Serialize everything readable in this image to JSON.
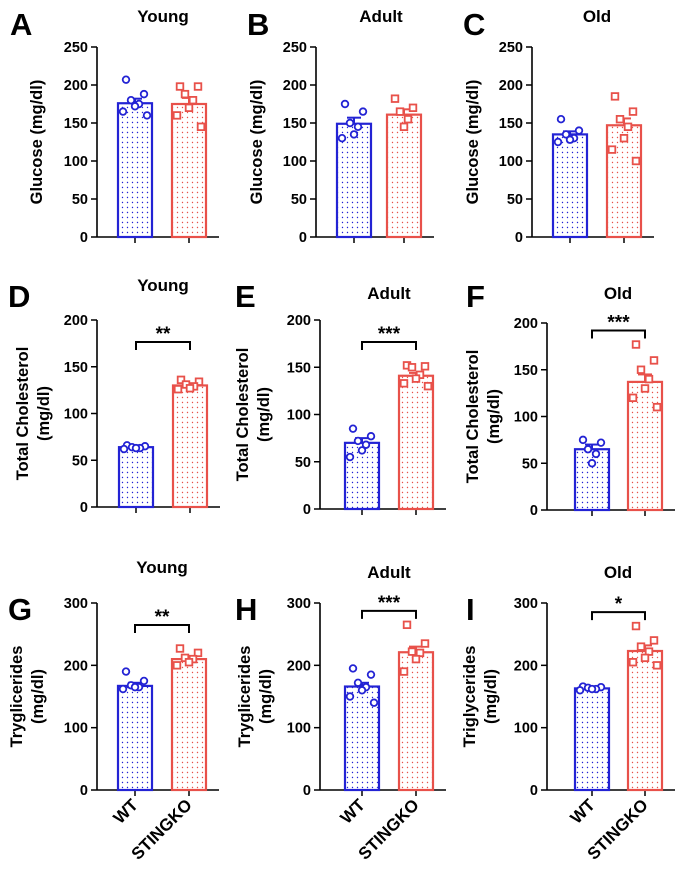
{
  "figure": {
    "categories": [
      "WT",
      "STINGKO"
    ]
  },
  "colors": {
    "wt": "#2323d4",
    "ko": "#e8514a",
    "axis": "#000000"
  },
  "chart_data": [
    {
      "type": "bar",
      "letter": "A",
      "title": "Young",
      "ylabel": [
        "Glucose (mg/dl)"
      ],
      "ylim": [
        0,
        250
      ],
      "yticks": [
        0,
        50,
        100,
        150,
        200,
        250
      ],
      "significance": "",
      "categories": [
        "WT",
        "STINGKO"
      ],
      "series": [
        {
          "name": "WT",
          "mean": 176,
          "sem": 6,
          "points": [
            207,
            188,
            180,
            175,
            172,
            165,
            160
          ]
        },
        {
          "name": "STINGKO",
          "mean": 175,
          "sem": 8,
          "points": [
            198,
            198,
            188,
            180,
            170,
            160,
            145
          ]
        }
      ]
    },
    {
      "type": "bar",
      "letter": "B",
      "title": "Adult",
      "ylabel": [
        "Glucose (mg/dl)"
      ],
      "ylim": [
        0,
        250
      ],
      "yticks": [
        0,
        50,
        100,
        150,
        200,
        250
      ],
      "significance": "",
      "categories": [
        "WT",
        "STINGKO"
      ],
      "series": [
        {
          "name": "WT",
          "mean": 149,
          "sem": 8,
          "points": [
            175,
            165,
            150,
            145,
            135,
            130
          ]
        },
        {
          "name": "STINGKO",
          "mean": 161,
          "sem": 7,
          "points": [
            182,
            170,
            165,
            155,
            145
          ]
        }
      ]
    },
    {
      "type": "bar",
      "letter": "C",
      "title": "Old",
      "ylabel": [
        "Glucose (mg/dl)"
      ],
      "ylim": [
        0,
        250
      ],
      "yticks": [
        0,
        50,
        100,
        150,
        200,
        250
      ],
      "significance": "",
      "categories": [
        "WT",
        "STINGKO"
      ],
      "series": [
        {
          "name": "WT",
          "mean": 135,
          "sem": 4,
          "points": [
            155,
            140,
            135,
            130,
            128,
            125
          ]
        },
        {
          "name": "STINGKO",
          "mean": 147,
          "sem": 9,
          "points": [
            185,
            165,
            155,
            145,
            130,
            115,
            100
          ]
        }
      ]
    },
    {
      "type": "bar",
      "letter": "D",
      "title": "Young",
      "ylabel": [
        "Total Cholesterol",
        "(mg/dl)"
      ],
      "ylim": [
        0,
        200
      ],
      "yticks": [
        0,
        50,
        100,
        150,
        200
      ],
      "significance": "**",
      "categories": [
        "WT",
        "STINGKO"
      ],
      "series": [
        {
          "name": "WT",
          "mean": 64,
          "sem": 1,
          "points": [
            66,
            65,
            64,
            63,
            63,
            62
          ]
        },
        {
          "name": "STINGKO",
          "mean": 130,
          "sem": 2,
          "points": [
            136,
            134,
            131,
            129,
            127,
            126
          ]
        }
      ]
    },
    {
      "type": "bar",
      "letter": "E",
      "title": "Adult",
      "ylabel": [
        "Total Cholesterol",
        "(mg/dl)"
      ],
      "ylim": [
        0,
        200
      ],
      "yticks": [
        0,
        50,
        100,
        150,
        200
      ],
      "significance": "***",
      "categories": [
        "WT",
        "STINGKO"
      ],
      "series": [
        {
          "name": "WT",
          "mean": 70,
          "sem": 5,
          "points": [
            85,
            77,
            72,
            68,
            62,
            55
          ]
        },
        {
          "name": "STINGKO",
          "mean": 141,
          "sem": 3,
          "points": [
            152,
            151,
            150,
            142,
            138,
            133,
            130
          ]
        }
      ]
    },
    {
      "type": "bar",
      "letter": "F",
      "title": "Old",
      "ylabel": [
        "Total Cholesterol",
        "(mg/dl)"
      ],
      "ylim": [
        0,
        200
      ],
      "yticks": [
        0,
        50,
        100,
        150,
        200
      ],
      "significance": "***",
      "categories": [
        "WT",
        "STINGKO"
      ],
      "series": [
        {
          "name": "WT",
          "mean": 65,
          "sem": 5,
          "points": [
            75,
            72,
            65,
            60,
            50
          ]
        },
        {
          "name": "STINGKO",
          "mean": 137,
          "sem": 8,
          "points": [
            177,
            160,
            150,
            140,
            130,
            120,
            110
          ]
        }
      ]
    },
    {
      "type": "bar",
      "letter": "G",
      "title": "Young",
      "ylabel": [
        "Tryglicerides",
        "(mg/dl)"
      ],
      "ylim": [
        0,
        300
      ],
      "yticks": [
        0,
        100,
        200,
        300
      ],
      "significance": "**",
      "categories": [
        "WT",
        "STINGKO"
      ],
      "series": [
        {
          "name": "WT",
          "mean": 167,
          "sem": 5,
          "points": [
            190,
            175,
            168,
            165,
            165,
            162
          ]
        },
        {
          "name": "STINGKO",
          "mean": 210,
          "sem": 5,
          "points": [
            227,
            220,
            212,
            210,
            205,
            200
          ]
        }
      ]
    },
    {
      "type": "bar",
      "letter": "H",
      "title": "Adult",
      "ylabel": [
        "Tryglicerides",
        "(mg/dl)"
      ],
      "ylim": [
        0,
        300
      ],
      "yticks": [
        0,
        100,
        200,
        300
      ],
      "significance": "***",
      "categories": [
        "WT",
        "STINGKO"
      ],
      "series": [
        {
          "name": "WT",
          "mean": 166,
          "sem": 6,
          "points": [
            195,
            185,
            172,
            165,
            160,
            150,
            140
          ]
        },
        {
          "name": "STINGKO",
          "mean": 221,
          "sem": 9,
          "points": [
            265,
            235,
            222,
            220,
            210,
            190
          ]
        }
      ]
    },
    {
      "type": "bar",
      "letter": "I",
      "title": "Old",
      "ylabel": [
        "Triglycerides",
        "(mg/dl)"
      ],
      "ylim": [
        0,
        300
      ],
      "yticks": [
        0,
        100,
        200,
        300
      ],
      "significance": "*",
      "categories": [
        "WT",
        "STINGKO"
      ],
      "series": [
        {
          "name": "WT",
          "mean": 163,
          "sem": 2,
          "points": [
            166,
            165,
            164,
            162,
            162,
            160
          ]
        },
        {
          "name": "STINGKO",
          "mean": 223,
          "sem": 9,
          "points": [
            263,
            240,
            230,
            222,
            212,
            205,
            200
          ]
        }
      ]
    }
  ]
}
